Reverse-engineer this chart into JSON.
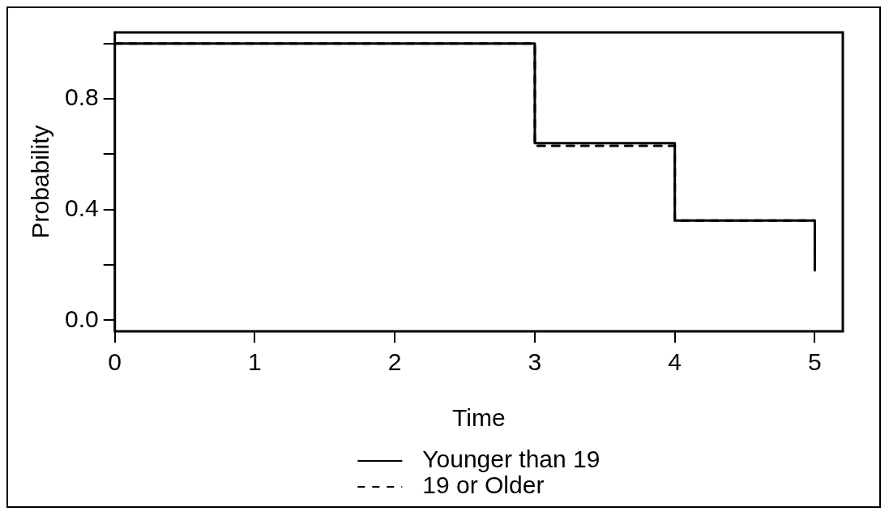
{
  "chart_data": {
    "type": "step",
    "xlabel": "Time",
    "ylabel": "Probability",
    "x": [
      0,
      3,
      4,
      5
    ],
    "series": [
      {
        "name": "Younger than 19",
        "color": "#000000",
        "line_style": "solid",
        "values": [
          1,
          0.64,
          0.36,
          0.18
        ]
      },
      {
        "name": "19 or Older",
        "color": "#000000",
        "line_style": "dashed",
        "values": [
          1,
          0.63,
          0.36,
          0.18
        ]
      }
    ],
    "xlim": [
      0,
      5.2
    ],
    "xticks": [
      0,
      1,
      2,
      3,
      4,
      5
    ],
    "ylim": [
      -0.04,
      1.04
    ],
    "yticks": [
      {
        "value": 0,
        "label": "0.0"
      },
      {
        "value": 0.2,
        "label": null
      },
      {
        "value": 0.4,
        "label": "0.4"
      },
      {
        "value": 0.6,
        "label": null
      },
      {
        "value": 0.8,
        "label": "0.8"
      },
      {
        "value": 1,
        "label": null
      }
    ],
    "grid": false,
    "legend": "bottom",
    "marker": "none"
  }
}
